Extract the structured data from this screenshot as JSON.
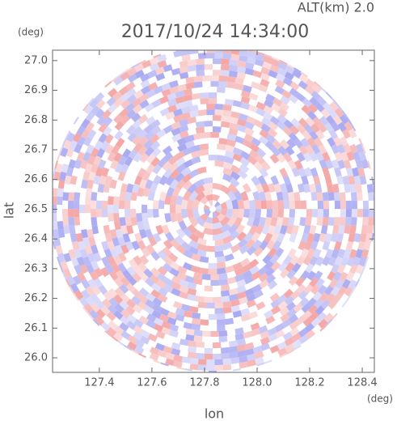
{
  "chart_data": {
    "type": "radar-ppi",
    "altitude_label": "ALT(km) 2.0",
    "title": "2017/10/24 14:34:00",
    "x_label": "lon",
    "y_label": "lat",
    "x_unit": "(deg)",
    "y_unit": "(deg)",
    "xlim": [
      127.222,
      128.446
    ],
    "ylim": [
      25.951,
      27.035
    ],
    "xticks": [
      127.4,
      127.6,
      127.8,
      {
        "value": 128.0,
        "label": "128.0"
      },
      128.2,
      128.4
    ],
    "yticks": [
      {
        "value": 26.0,
        "label": "26.0"
      },
      26.1,
      26.2,
      26.3,
      26.4,
      26.5,
      26.6,
      26.7,
      26.8,
      26.9,
      {
        "value": 27.0,
        "label": "27.0"
      }
    ],
    "center": [
      127.831,
      26.501
    ],
    "colors": [
      "#f4a6a6",
      "#a9a9f2"
    ]
  }
}
